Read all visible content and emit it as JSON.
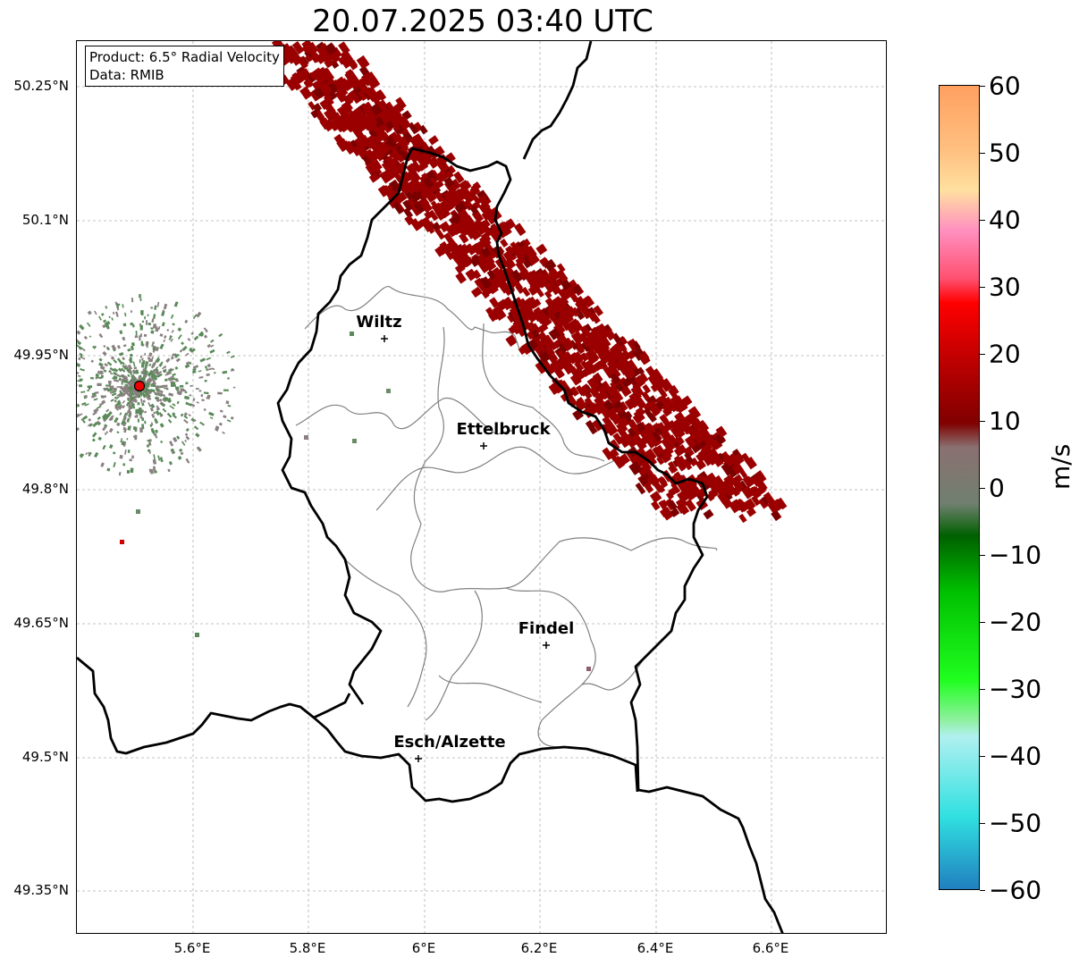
{
  "title": "20.07.2025 03:40 UTC",
  "info_box": {
    "product": "Product: 6.5° Radial Velocity",
    "source": "Data: RMIB"
  },
  "latitude_labels": [
    "50.25°N",
    "50.1°N",
    "49.95°N",
    "49.8°N",
    "49.65°N",
    "49.5°N",
    "49.35°N"
  ],
  "longitude_labels": [
    "5.6°E",
    "5.8°E",
    "6°E",
    "6.2°E",
    "6.4°E",
    "6.6°E"
  ],
  "cities": [
    {
      "name": "Wiltz"
    },
    {
      "name": "Ettelbruck"
    },
    {
      "name": "Findel"
    },
    {
      "name": "Esch/Alzette"
    }
  ],
  "colorbar": {
    "unit": "m/s",
    "ticks": [
      "60",
      "50",
      "40",
      "30",
      "20",
      "10",
      "0",
      "−10",
      "−20",
      "−30",
      "−40",
      "−50",
      "−60"
    ],
    "colors": {
      "high_orange": "#ffa060",
      "light_orange": "#ffc080",
      "pale_yellow": "#ffe0a0",
      "pink": "#ff90c0",
      "light_red": "#ff5070",
      "red": "#ff0000",
      "dark_red": "#c00000",
      "maroon": "#800000",
      "mauve_gray": "#8a7070",
      "gray_green": "#708070",
      "dark_green": "#006000",
      "green": "#00c000",
      "bright_green": "#20ff20",
      "light_green": "#90f0a0",
      "pale_cyan": "#b0f0f0",
      "cyan": "#30e0e0",
      "blue": "#2080c0"
    }
  },
  "map_colors": {
    "velocity_echo": "#9a0000",
    "radar_clutter": "#8a8080",
    "clutter_green": "#5a8a5a",
    "radar_site": "#ee0000",
    "border": "#000000",
    "canton_border": "#808080",
    "grid": "#b0b0b0"
  }
}
